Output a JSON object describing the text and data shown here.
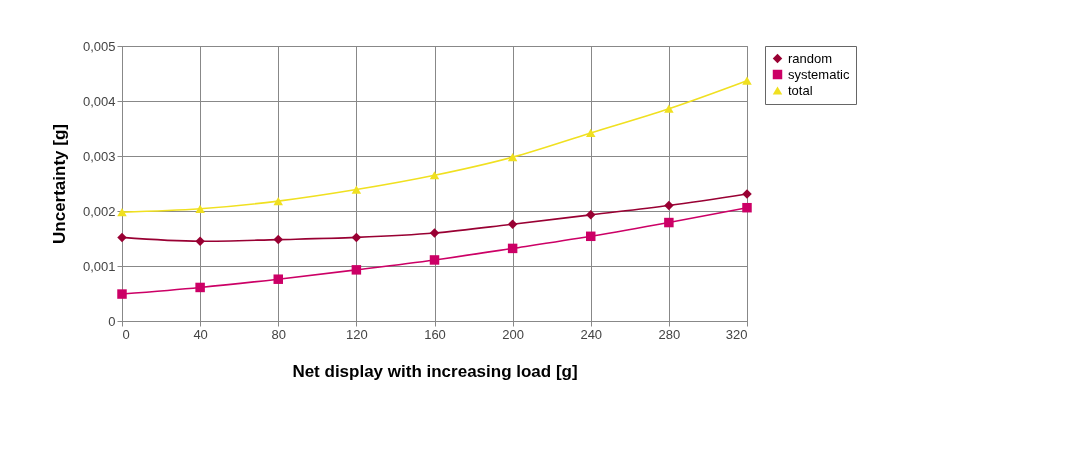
{
  "chart_data": {
    "type": "line",
    "xlabel": "Net display with increasing load [g]",
    "ylabel": "Uncertainty [g]",
    "x": [
      0,
      40,
      80,
      120,
      160,
      200,
      240,
      280,
      320
    ],
    "series": [
      {
        "name": "random",
        "color": "#990033",
        "marker": "diamond",
        "values": [
          0.00152,
          0.00145,
          0.00148,
          0.00152,
          0.0016,
          0.00176,
          0.00193,
          0.0021,
          0.00231
        ]
      },
      {
        "name": "systematic",
        "color": "#cc0066",
        "marker": "square",
        "values": [
          0.00049,
          0.00061,
          0.00076,
          0.00093,
          0.00111,
          0.00132,
          0.00154,
          0.00179,
          0.00206
        ]
      },
      {
        "name": "total",
        "color": "#f0e020",
        "marker": "triangle",
        "values": [
          0.00198,
          0.00204,
          0.00218,
          0.00239,
          0.00265,
          0.00298,
          0.00342,
          0.00386,
          0.00437
        ]
      }
    ],
    "xlim": [
      0,
      320
    ],
    "xticks": [
      0,
      40,
      80,
      120,
      160,
      200,
      240,
      280,
      320
    ],
    "ylim": [
      0,
      0.005
    ],
    "yticks": [
      0,
      {
        "value": 0.001,
        "label": "0,001"
      },
      {
        "value": 0.002,
        "label": "0,002"
      },
      {
        "value": 0.003,
        "label": "0,003"
      },
      {
        "value": 0.004,
        "label": "0,004"
      },
      {
        "value": 0.005,
        "label": "0,005"
      }
    ],
    "grid": true,
    "legend": "right"
  }
}
